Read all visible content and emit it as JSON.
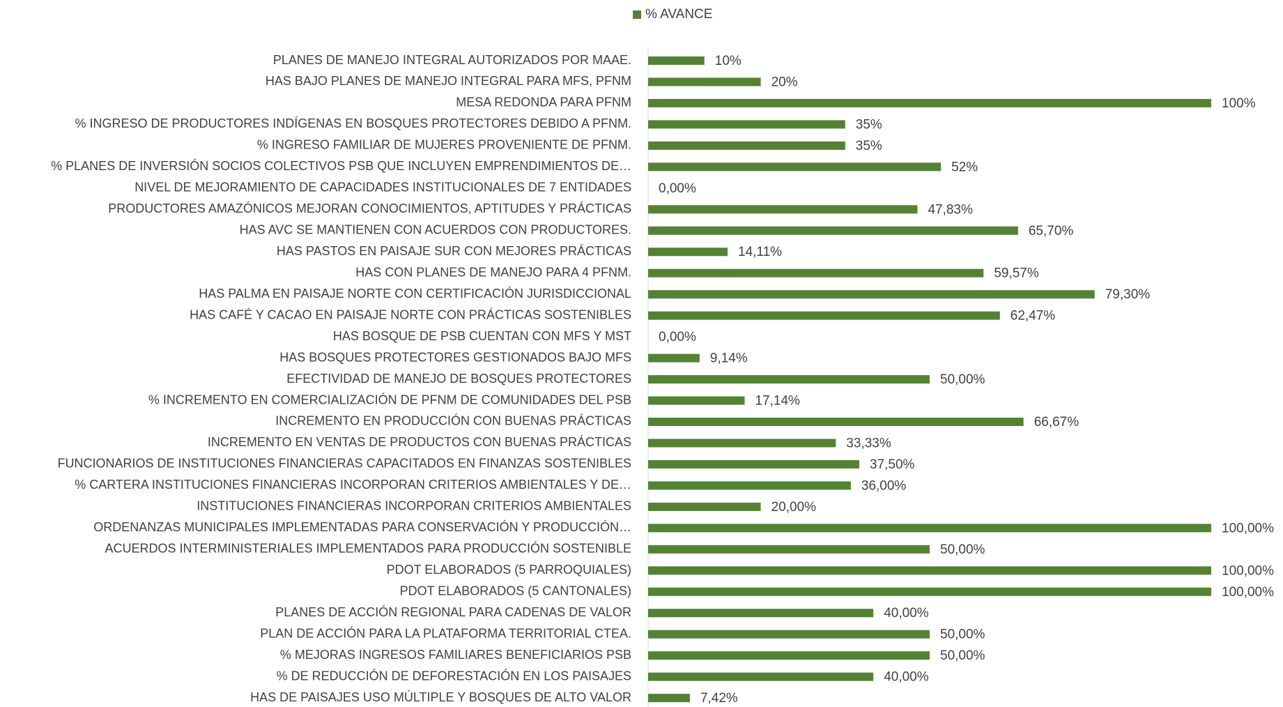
{
  "chart_data": {
    "type": "barh",
    "color": "#548235",
    "legend": "top",
    "xlim": [
      0,
      100
    ],
    "series": [
      {
        "name": "% AVANCE",
        "color": "#548235",
        "values": [
          10,
          20,
          100,
          35,
          35,
          52,
          0,
          47.83,
          65.7,
          14.11,
          59.57,
          79.3,
          62.47,
          0,
          9.14,
          50,
          17.14,
          66.67,
          33.33,
          37.5,
          36,
          20,
          100,
          50,
          100,
          100,
          40,
          50,
          50,
          40,
          7.42
        ],
        "value_labels": [
          "10%",
          "20%",
          "100%",
          "35%",
          "35%",
          "52%",
          "0,00%",
          "47,83%",
          "65,70%",
          "14,11%",
          "59,57%",
          "79,30%",
          "62,47%",
          "0,00%",
          "9,14%",
          "50,00%",
          "17,14%",
          "66,67%",
          "33,33%",
          "37,50%",
          "36,00%",
          "20,00%",
          "100,00%",
          "50,00%",
          "100,00%",
          "100,00%",
          "40,00%",
          "50,00%",
          "50,00%",
          "40,00%",
          "7,42%"
        ]
      }
    ],
    "categories": [
      "PLANES DE MANEJO INTEGRAL AUTORIZADOS POR MAAE.",
      "HAS BAJO PLANES DE MANEJO INTEGRAL PARA MFS, PFNM",
      "MESA REDONDA PARA PFNM",
      "% INGRESO DE PRODUCTORES INDÍGENAS EN BOSQUES PROTECTORES DEBIDO A PFNM.",
      "% INGRESO FAMILIAR DE MUJERES PROVENIENTE DE PFNM.",
      "% PLANES DE INVERSIÓN SOCIOS COLECTIVOS PSB QUE INCLUYEN EMPRENDIMIENTOS DE…",
      "NIVEL DE MEJORAMIENTO DE CAPACIDADES INSTITUCIONALES DE 7 ENTIDADES",
      "PRODUCTORES AMAZÓNICOS MEJORAN CONOCIMIENTOS, APTITUDES Y PRÁCTICAS",
      "HAS AVC SE MANTIENEN CON ACUERDOS CON PRODUCTORES.",
      "HAS PASTOS EN PAISAJE SUR CON MEJORES PRÁCTICAS",
      "HAS CON PLANES DE MANEJO PARA 4 PFNM.",
      "HAS PALMA EN PAISAJE NORTE CON CERTIFICACIÓN JURISDICCIONAL",
      "HAS CAFÉ Y CACAO EN PAISAJE NORTE CON PRÁCTICAS SOSTENIBLES",
      "HAS BOSQUE DE PSB CUENTAN CON MFS Y MST",
      "HAS BOSQUES PROTECTORES GESTIONADOS BAJO MFS",
      "EFECTIVIDAD DE MANEJO DE BOSQUES PROTECTORES",
      "% INCREMENTO EN COMERCIALIZACIÓN DE PFNM DE COMUNIDADES DEL PSB",
      "INCREMENTO EN PRODUCCIÓN CON BUENAS PRÁCTICAS",
      "INCREMENTO EN VENTAS DE PRODUCTOS CON BUENAS PRÁCTICAS",
      "FUNCIONARIOS DE INSTITUCIONES FINANCIERAS CAPACITADOS EN FINANZAS SOSTENIBLES",
      "% CARTERA INSTITUCIONES FINANCIERAS INCORPORAN CRITERIOS AMBIENTALES Y DE…",
      "INSTITUCIONES FINANCIERAS INCORPORAN CRITERIOS AMBIENTALES",
      "ORDENANZAS MUNICIPALES IMPLEMENTADAS PARA CONSERVACIÓN Y PRODUCCIÓN…",
      "ACUERDOS INTERMINISTERIALES IMPLEMENTADOS PARA PRODUCCIÓN SOSTENIBLE",
      "PDOT ELABORADOS (5 PARROQUIALES)",
      "PDOT ELABORADOS (5 CANTONALES)",
      "PLANES DE ACCIÓN REGIONAL PARA CADENAS DE VALOR",
      "PLAN DE ACCIÓN PARA LA PLATAFORMA TERRITORIAL CTEA.",
      "% MEJORAS INGRESOS FAMILIARES  BENEFICIARIOS PSB",
      "% DE REDUCCIÓN DE DEFORESTACIÓN EN LOS PAISAJES",
      "HAS DE PAISAJES USO MÚLTIPLE Y BOSQUES DE ALTO VALOR"
    ]
  }
}
